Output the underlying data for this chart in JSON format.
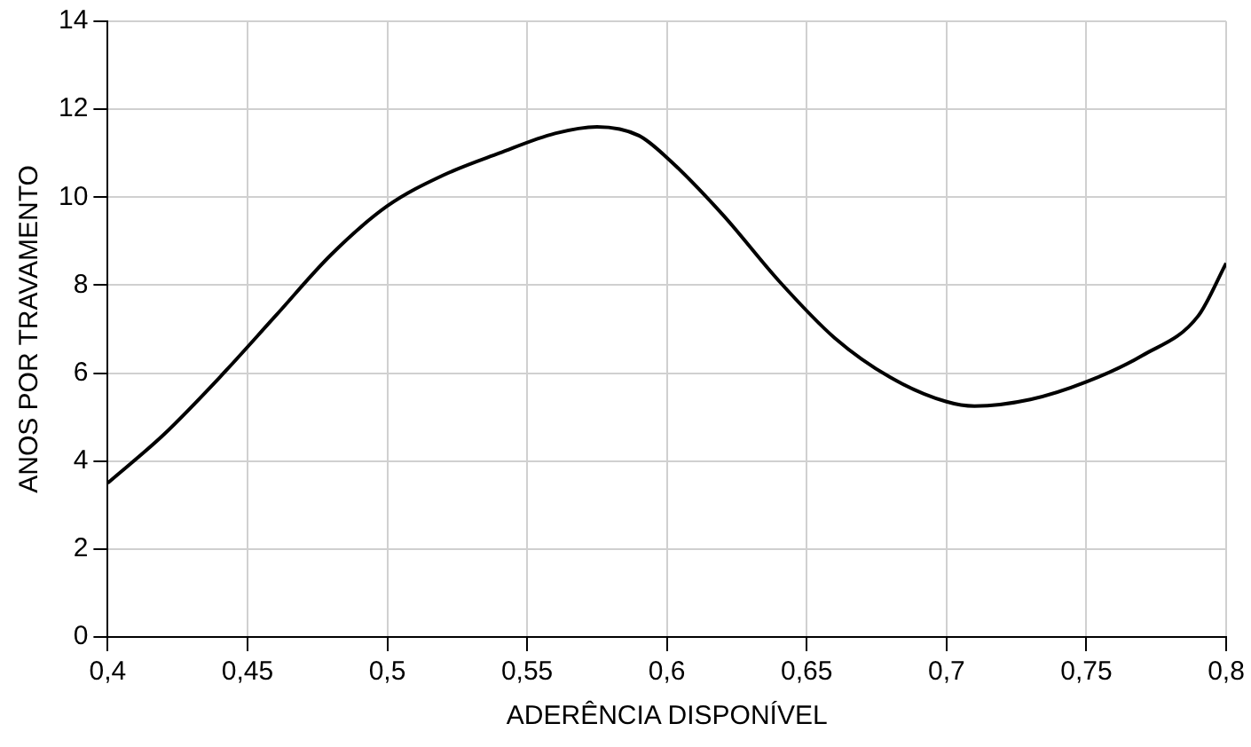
{
  "chart_data": {
    "type": "line",
    "xlabel": "ADERÊNCIA DISPONÍVEL",
    "ylabel": "ANOS POR TRAVAMENTO",
    "x": [
      0.4,
      0.42,
      0.44,
      0.46,
      0.48,
      0.5,
      0.52,
      0.54,
      0.56,
      0.575,
      0.59,
      0.6,
      0.62,
      0.64,
      0.66,
      0.68,
      0.7,
      0.71,
      0.73,
      0.75,
      0.77,
      0.79,
      0.8
    ],
    "series": [
      {
        "color": "#000000",
        "values": [
          3.5,
          4.6,
          5.9,
          7.3,
          8.7,
          9.8,
          10.5,
          11.0,
          11.45,
          11.6,
          11.4,
          10.9,
          9.6,
          8.1,
          6.8,
          5.9,
          5.35,
          5.25,
          5.4,
          5.8,
          6.4,
          7.3,
          8.5
        ]
      }
    ],
    "xlim": [
      0.4,
      0.8
    ],
    "xticks": [
      {
        "value": 0.4,
        "label": "0,4"
      },
      {
        "value": 0.45,
        "label": "0,45"
      },
      {
        "value": 0.5,
        "label": "0,5"
      },
      {
        "value": 0.55,
        "label": "0,55"
      },
      {
        "value": 0.6,
        "label": "0,6"
      },
      {
        "value": 0.65,
        "label": "0,65"
      },
      {
        "value": 0.7,
        "label": "0,7"
      },
      {
        "value": 0.75,
        "label": "0,75"
      },
      {
        "value": 0.8,
        "label": "0,8"
      }
    ],
    "ylim": [
      0,
      14
    ],
    "yticks": [
      0,
      2,
      4,
      6,
      8,
      10,
      12,
      14
    ],
    "grid": true,
    "legend": false,
    "marker": "none",
    "line_style": "solid"
  }
}
